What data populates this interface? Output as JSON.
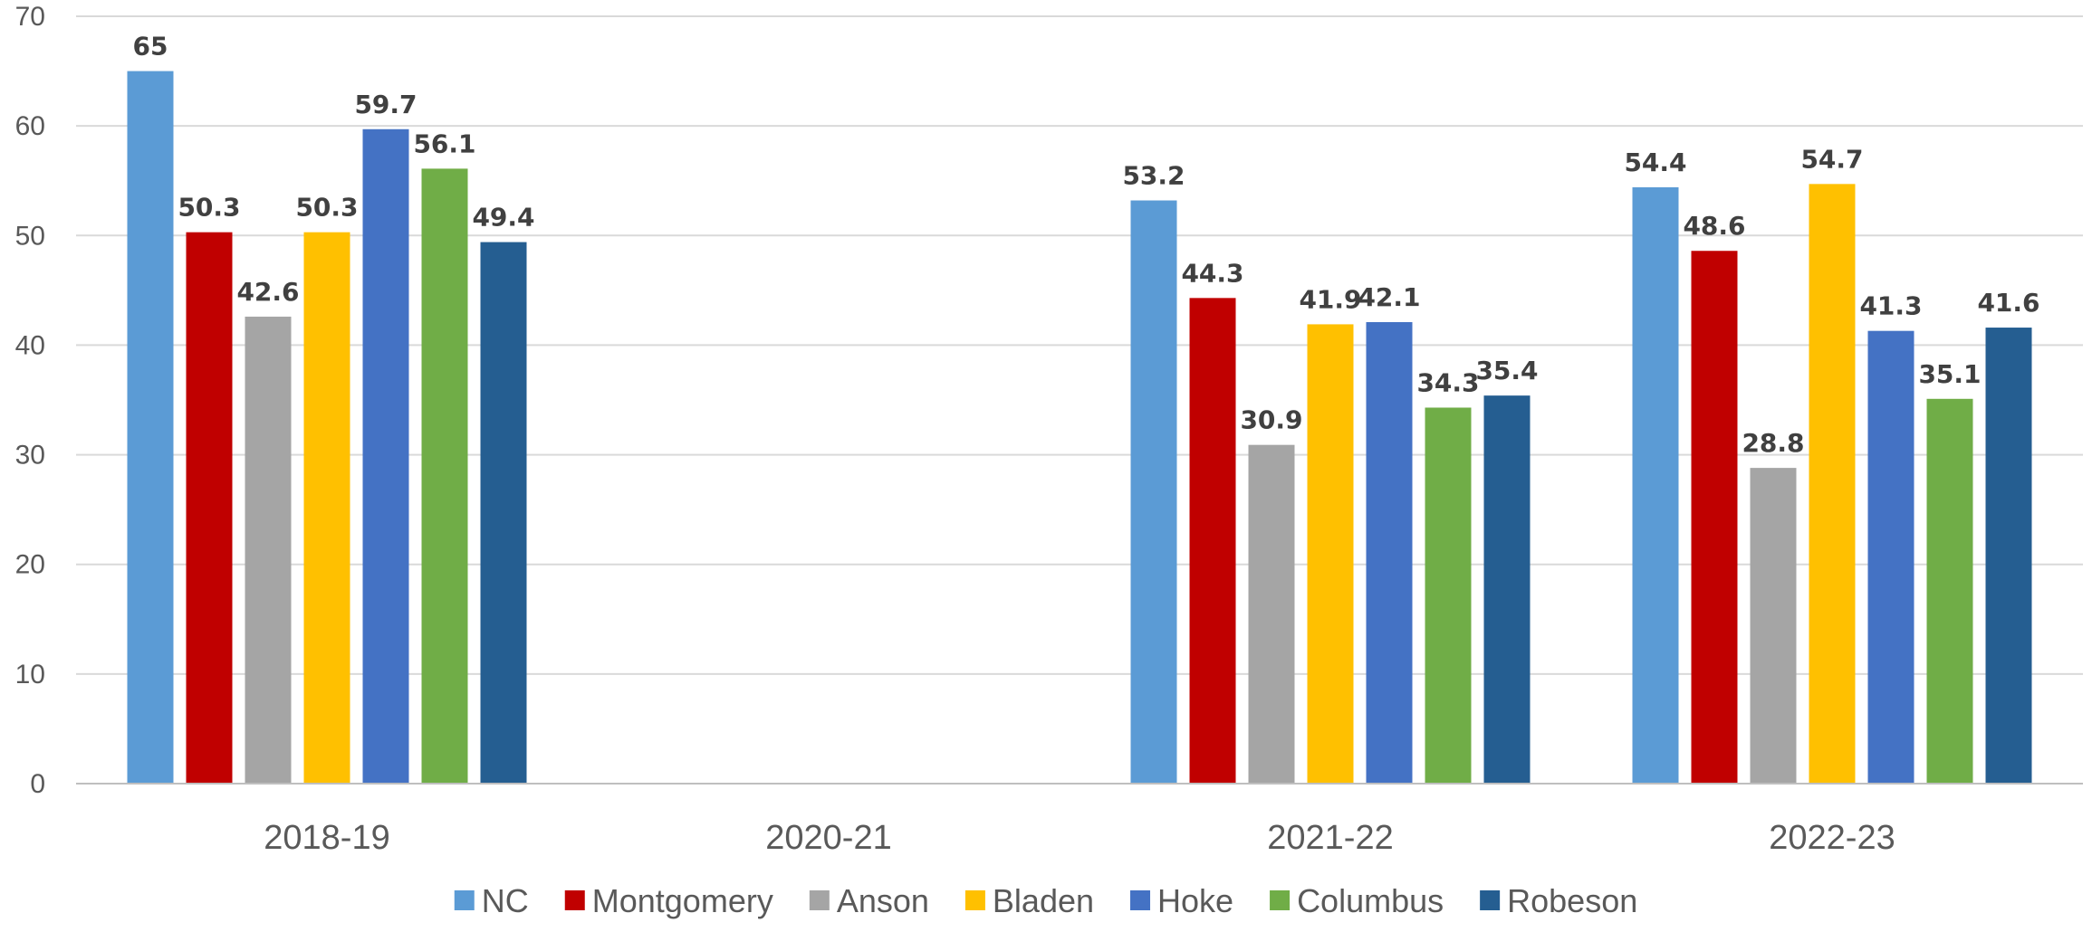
{
  "chart_data": {
    "type": "bar",
    "title": "",
    "xlabel": "",
    "ylabel": "",
    "ylim": [
      0,
      70
    ],
    "yticks": [
      0,
      10,
      20,
      30,
      40,
      50,
      60,
      70
    ],
    "grid": true,
    "legend": "bottom",
    "categories": [
      "2018-19",
      "2020-21",
      "2021-22",
      "2022-23"
    ],
    "series": [
      {
        "name": "NC",
        "color": "#5B9BD5",
        "values": [
          65,
          null,
          53.2,
          54.4
        ]
      },
      {
        "name": "Montgomery",
        "color": "#C00000",
        "values": [
          50.3,
          null,
          44.3,
          48.6
        ]
      },
      {
        "name": "Anson",
        "color": "#A5A5A5",
        "values": [
          42.6,
          null,
          30.9,
          28.8
        ]
      },
      {
        "name": "Bladen",
        "color": "#FFC000",
        "values": [
          50.3,
          null,
          41.9,
          54.7
        ]
      },
      {
        "name": "Hoke",
        "color": "#4472C4",
        "values": [
          59.7,
          null,
          42.1,
          41.3
        ]
      },
      {
        "name": "Columbus",
        "color": "#70AD47",
        "values": [
          56.1,
          null,
          34.3,
          35.1
        ]
      },
      {
        "name": "Robeson",
        "color": "#255E91",
        "values": [
          49.4,
          null,
          35.4,
          41.6
        ]
      }
    ]
  }
}
